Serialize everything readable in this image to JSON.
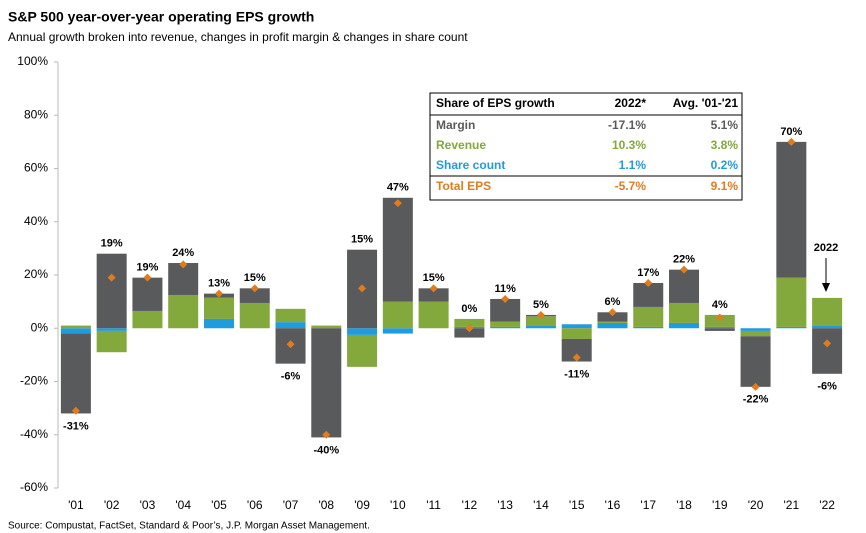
{
  "chart_data": {
    "type": "stacked_bar",
    "title": "S&P 500 year-over-year operating EPS growth",
    "subtitle": "Annual growth broken into revenue, changes in profit margin & changes in share count",
    "source": "Source: Compustat, FactSet, Standard & Poor’s, J.P. Morgan Asset Management.",
    "categories": [
      "'01",
      "'02",
      "'03",
      "'04",
      "'05",
      "'06",
      "'07",
      "'08",
      "'09",
      "'10",
      "'11",
      "'12",
      "'13",
      "'14",
      "'15",
      "'16",
      "'17",
      "'18",
      "'19",
      "'20",
      "'21",
      "'22"
    ],
    "series": [
      {
        "name": "Margin",
        "color": "#595a5c",
        "values": [
          -30,
          28,
          12.5,
          12,
          1.5,
          5.5,
          -13.3,
          -41,
          29.5,
          39,
          5,
          -3.5,
          8.5,
          0.5,
          -8.5,
          3.5,
          9,
          12.5,
          -1,
          -19,
          51,
          -17.1
        ]
      },
      {
        "name": "Revenue",
        "color": "#83a83b",
        "values": [
          1,
          -8,
          6.5,
          12.5,
          8,
          9.5,
          5,
          1,
          -12,
          10,
          10,
          3,
          2,
          3.5,
          -4,
          0.5,
          7.5,
          7.5,
          4.5,
          -2,
          18.5,
          10.3
        ]
      },
      {
        "name": "Share count",
        "color": "#1f9be0",
        "values": [
          -2,
          -1,
          0,
          0,
          3.5,
          0,
          2.3,
          0,
          -2.5,
          -2,
          0,
          0.5,
          0.5,
          1,
          1.5,
          2,
          0.5,
          2,
          0.5,
          -1,
          0.5,
          1.1
        ]
      }
    ],
    "total": {
      "name": "Total EPS",
      "color": "#e07c1e",
      "values": [
        -31,
        19,
        19,
        24,
        13,
        15,
        -6,
        -40,
        15,
        47,
        15,
        0,
        11,
        5,
        -11,
        6,
        17,
        22,
        4,
        -22,
        70,
        -5.7
      ],
      "value_labels": [
        "-31%",
        "19%",
        "19%",
        "24%",
        "13%",
        "15%",
        "-6%",
        "-40%",
        "15%",
        "47%",
        "15%",
        "0%",
        "11%",
        "5%",
        "-11%",
        "6%",
        "17%",
        "22%",
        "4%",
        "-22%",
        "70%",
        "-6%"
      ]
    },
    "annotation": "2022",
    "ylim": [
      -60,
      100
    ],
    "yticks": [
      {
        "value": -60,
        "label": "-60%"
      },
      {
        "value": -40,
        "label": "-40%"
      },
      {
        "value": -20,
        "label": "-20%"
      },
      {
        "value": 0,
        "label": "0%"
      },
      {
        "value": 20,
        "label": "20%"
      },
      {
        "value": 40,
        "label": "40%"
      },
      {
        "value": 60,
        "label": "60%"
      },
      {
        "value": 80,
        "label": "80%"
      },
      {
        "value": 100,
        "label": "100%"
      }
    ],
    "grid": false,
    "table": {
      "columns": [
        "Share of EPS growth",
        "2022*",
        "Avg. '01-'21"
      ],
      "rows": [
        [
          "-17.1%",
          "5.1%"
        ],
        [
          "10.3%",
          "3.8%"
        ],
        [
          "1.1%",
          "0.2%"
        ],
        [
          "-5.7%",
          "9.1%"
        ]
      ]
    }
  }
}
